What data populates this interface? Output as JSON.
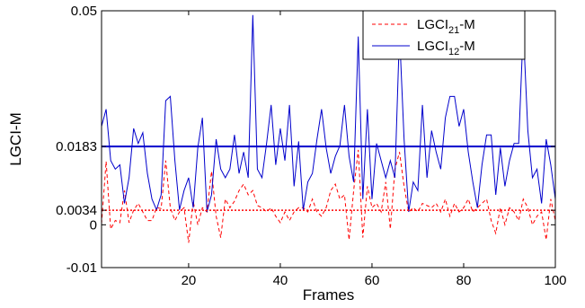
{
  "chart_data": {
    "type": "line",
    "xlabel": "Frames",
    "ylabel": "LGCI-M",
    "xlim": [
      1,
      100
    ],
    "ylim": [
      -0.01,
      0.05
    ],
    "xticks": [
      20,
      40,
      60,
      80,
      100
    ],
    "yticks": [
      {
        "value": -0.01,
        "label": "-0.01"
      },
      {
        "value": 0,
        "label": "0"
      },
      {
        "value": 0.0034,
        "label": "0.0034"
      },
      {
        "value": 0.0183,
        "label": "0.0183"
      },
      {
        "value": 0.05,
        "label": "0.05"
      }
    ],
    "grid": false,
    "legend_position": "top-right",
    "x": [
      1,
      2,
      3,
      4,
      5,
      6,
      7,
      8,
      9,
      10,
      11,
      12,
      13,
      14,
      15,
      16,
      17,
      18,
      19,
      20,
      21,
      22,
      23,
      24,
      25,
      26,
      27,
      28,
      29,
      30,
      31,
      32,
      33,
      34,
      35,
      36,
      37,
      38,
      39,
      40,
      41,
      42,
      43,
      44,
      45,
      46,
      47,
      48,
      49,
      50,
      51,
      52,
      53,
      54,
      55,
      56,
      57,
      58,
      59,
      60,
      61,
      62,
      63,
      64,
      65,
      66,
      67,
      68,
      69,
      70,
      71,
      72,
      73,
      74,
      75,
      76,
      77,
      78,
      79,
      80,
      81,
      82,
      83,
      84,
      85,
      86,
      87,
      88,
      89,
      90,
      91,
      92,
      93,
      94,
      95,
      96,
      97,
      98,
      99,
      100
    ],
    "series": [
      {
        "name_base": "LGCI",
        "name_sub": "21",
        "name_suffix": "-M",
        "color": "#ff0000",
        "style": "dashed",
        "values": [
          0.0002,
          0.0148,
          -0.001,
          0.001,
          0.0005,
          0.008,
          0.0005,
          0.0034,
          0.005,
          0.003,
          0.001,
          0.001,
          0.004,
          0.0038,
          0.015,
          0.004,
          0.001,
          0.003,
          0.004,
          -0.0042,
          0.0055,
          0.0,
          0.004,
          0.003,
          0.0125,
          0.002,
          -0.003,
          0.006,
          0.004,
          0.0055,
          0.008,
          0.0095,
          0.007,
          0.008,
          0.0045,
          0.004,
          0.003,
          0.004,
          0.002,
          0.0005,
          0.003,
          0.001,
          0.003,
          0.004,
          0.004,
          0.003,
          0.006,
          0.003,
          0.002,
          0.004,
          0.008,
          0.0095,
          0.006,
          0.007,
          -0.0035,
          0.008,
          0.0175,
          -0.003,
          0.009,
          0.004,
          0.005,
          0.003,
          0.01,
          -0.001,
          0.013,
          0.017,
          0.009,
          0.003,
          0.004,
          0.003,
          0.005,
          0.0045,
          0.004,
          0.005,
          0.003,
          0.006,
          0.002,
          0.005,
          0.003,
          0.004,
          0.006,
          0.003,
          0.004,
          0.005,
          0.006,
          0.001,
          -0.002,
          0.004,
          0.0,
          0.004,
          0.003,
          0.001,
          0.006,
          0.004,
          0.0,
          0.002,
          0.003,
          -0.0035,
          0.006,
          0.001
        ]
      },
      {
        "name_base": "LGCI",
        "name_sub": "12",
        "name_suffix": "-M",
        "color": "#0000cc",
        "style": "solid",
        "values": [
          0.023,
          0.027,
          0.015,
          0.013,
          0.014,
          0.005,
          0.011,
          0.0225,
          0.019,
          0.0215,
          0.012,
          0.006,
          0.0035,
          0.007,
          0.029,
          0.03,
          0.015,
          0.0035,
          0.008,
          0.011,
          0.004,
          0.018,
          0.025,
          0.003,
          0.007,
          0.02,
          0.013,
          0.011,
          0.013,
          0.021,
          0.012,
          0.017,
          0.011,
          0.049,
          0.013,
          0.011,
          0.019,
          0.028,
          0.014,
          0.0225,
          0.015,
          0.028,
          0.009,
          0.0195,
          0.0035,
          0.01,
          0.012,
          0.02,
          0.027,
          0.018,
          0.012,
          0.016,
          0.0185,
          0.028,
          0.016,
          0.01,
          0.044,
          0.006,
          0.027,
          0.006,
          0.019,
          0.015,
          0.011,
          0.015,
          0.011,
          0.045,
          0.02,
          0.003,
          0.01,
          0.008,
          0.028,
          0.011,
          0.022,
          0.017,
          0.013,
          0.025,
          0.03,
          0.03,
          0.023,
          0.027,
          0.017,
          0.01,
          0.004,
          0.014,
          0.021,
          0.021,
          0.007,
          0.018,
          0.009,
          0.015,
          0.019,
          0.019,
          0.046,
          0.022,
          0.011,
          0.013,
          0.005,
          0.02,
          0.014,
          0.006
        ]
      }
    ],
    "reference_lines": [
      {
        "value": 0.0183,
        "color": "#0000cc",
        "style": "solid"
      },
      {
        "value": 0.0034,
        "color": "#ff0000",
        "style": "dotted"
      }
    ]
  }
}
